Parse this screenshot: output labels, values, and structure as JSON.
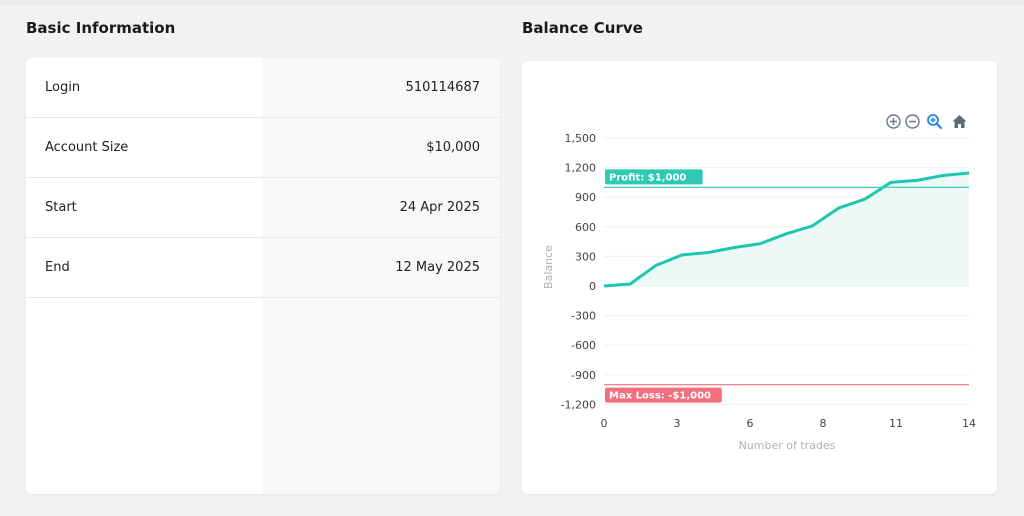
{
  "basic_info": {
    "title": "Basic Information",
    "rows": [
      {
        "label": "Login",
        "value": "510114687"
      },
      {
        "label": "Account Size",
        "value": "$10,000"
      },
      {
        "label": "Start",
        "value": "24 Apr 2025"
      },
      {
        "label": "End",
        "value": "12 May 2025"
      }
    ]
  },
  "balance_curve": {
    "title": "Balance Curve",
    "toolbar": [
      "zoom-in-icon",
      "zoom-out-icon",
      "zoom-icon",
      "home-icon"
    ]
  },
  "chart_data": {
    "type": "line",
    "xlabel": "Number of trades",
    "ylabel": "Balance",
    "xlim": [
      0,
      14
    ],
    "ylim": [
      -1300,
      1500
    ],
    "x_ticks": [
      "0",
      "3",
      "6",
      "8",
      "11",
      "14"
    ],
    "x_tick_values": [
      0,
      2.8,
      5.6,
      8.4,
      11.2,
      14
    ],
    "y_ticks": [
      "1,500",
      "1,200",
      "900",
      "600",
      "300",
      "0",
      "-300",
      "-600",
      "-900",
      "-1,200"
    ],
    "y_tick_values": [
      1500,
      1200,
      900,
      600,
      300,
      0,
      -300,
      -600,
      -900,
      -1200
    ],
    "series": [
      {
        "x": [
          0,
          1,
          2,
          3,
          4,
          5,
          6,
          7,
          8,
          9,
          10,
          11,
          12,
          13,
          14
        ],
        "values": [
          0,
          20,
          210,
          315,
          340,
          390,
          430,
          530,
          610,
          790,
          880,
          1050,
          1070,
          1120,
          1145
        ]
      }
    ],
    "annotations": [
      {
        "label": "Profit: $1,000",
        "y": 1000,
        "color": "#2dc9b4"
      },
      {
        "label": "Max Loss: -$1,000",
        "y": -1000,
        "color": "#f2707d"
      }
    ],
    "line_color": "#1ec7b0",
    "area_color": "#e6f7f4",
    "grid": true
  }
}
